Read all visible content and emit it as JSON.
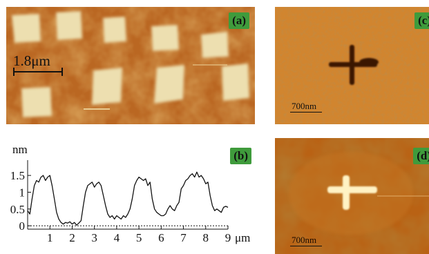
{
  "panels": {
    "a": {
      "label": "(a)",
      "scale_text": "1.8μm"
    },
    "b": {
      "label": "(b)"
    },
    "c": {
      "label": "(c)",
      "scale_text": "700nm"
    },
    "d": {
      "label": "(d)",
      "scale_text": "700nm"
    }
  },
  "colors": {
    "afm_dark": "#8a3e08",
    "afm_mid": "#c76e22",
    "afm_light": "#f6e7b4",
    "label_bg": "#3f9b3c"
  },
  "chart_data": {
    "type": "line",
    "xlabel": "μm",
    "ylabel": "nm",
    "xlim": [
      0,
      9
    ],
    "ylim": [
      -0.1,
      1.75
    ],
    "xticks": [
      1,
      2,
      3,
      4,
      5,
      6,
      7,
      8,
      9
    ],
    "yticks": [
      0,
      0.5,
      1,
      1.5
    ],
    "ytick_labels": [
      "0",
      "0.5",
      "1",
      "1.5"
    ],
    "baseline": 0,
    "series": [
      {
        "x": [
          0.0,
          0.1,
          0.2,
          0.3,
          0.4,
          0.5,
          0.6,
          0.7,
          0.8,
          0.9,
          1.0,
          1.1,
          1.2,
          1.3,
          1.4,
          1.5,
          1.6,
          1.7,
          1.8,
          1.9,
          2.0,
          2.1,
          2.2,
          2.3,
          2.4,
          2.5,
          2.6,
          2.7,
          2.8,
          2.9,
          3.0,
          3.1,
          3.2,
          3.3,
          3.4,
          3.5,
          3.6,
          3.7,
          3.8,
          3.9,
          4.0,
          4.1,
          4.2,
          4.3,
          4.4,
          4.5,
          4.6,
          4.7,
          4.8,
          4.9,
          5.0,
          5.1,
          5.2,
          5.3,
          5.4,
          5.5,
          5.6,
          5.7,
          5.8,
          5.9,
          6.0,
          6.1,
          6.2,
          6.3,
          6.4,
          6.5,
          6.6,
          6.7,
          6.8,
          6.9,
          7.0,
          7.1,
          7.2,
          7.3,
          7.4,
          7.5,
          7.6,
          7.7,
          7.8,
          7.9,
          8.0,
          8.1,
          8.2,
          8.3,
          8.4,
          8.5,
          8.6,
          8.7,
          8.8,
          8.9,
          9.0
        ],
        "y": [
          0.45,
          0.35,
          0.8,
          1.2,
          1.35,
          1.3,
          1.45,
          1.5,
          1.35,
          1.45,
          1.5,
          1.2,
          0.8,
          0.4,
          0.2,
          0.1,
          0.05,
          0.1,
          0.08,
          0.12,
          0.05,
          0.1,
          0.02,
          0.08,
          0.15,
          0.6,
          1.0,
          1.2,
          1.25,
          1.3,
          1.15,
          1.25,
          1.3,
          1.2,
          0.9,
          0.6,
          0.35,
          0.25,
          0.3,
          0.2,
          0.3,
          0.25,
          0.2,
          0.3,
          0.25,
          0.35,
          0.5,
          0.8,
          1.2,
          1.35,
          1.45,
          1.4,
          1.35,
          1.4,
          1.2,
          1.3,
          0.8,
          0.5,
          0.4,
          0.35,
          0.3,
          0.3,
          0.35,
          0.5,
          0.6,
          0.5,
          0.45,
          0.6,
          0.7,
          1.1,
          1.2,
          1.35,
          1.4,
          1.5,
          1.55,
          1.45,
          1.6,
          1.45,
          1.5,
          1.4,
          1.25,
          1.3,
          0.9,
          0.6,
          0.45,
          0.5,
          0.45,
          0.4,
          0.55,
          0.58,
          0.55
        ]
      }
    ]
  }
}
